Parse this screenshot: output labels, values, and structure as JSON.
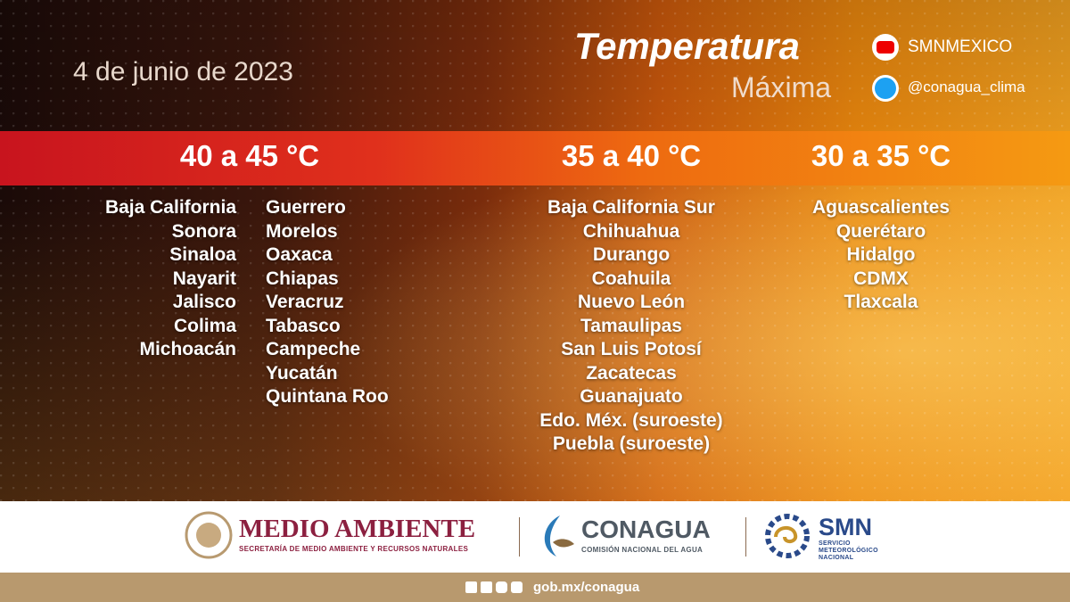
{
  "header": {
    "date": "4 de junio de 2023",
    "title": "Temperatura",
    "subtitle": "Máxima"
  },
  "social": {
    "youtube": "SMNMEXICO",
    "twitter": "@conagua_clima"
  },
  "columns": [
    {
      "range": "40 a 45 °C",
      "lists": [
        [
          "Baja California",
          "Sonora",
          "Sinaloa",
          "Nayarit",
          "Jalisco",
          "Colima",
          "Michoacán"
        ],
        [
          "Guerrero",
          "Morelos",
          "Oaxaca",
          "Chiapas",
          "Veracruz",
          "Tabasco",
          "Campeche",
          "Yucatán",
          "Quintana Roo"
        ]
      ]
    },
    {
      "range": "35 a 40 °C",
      "lists": [
        [
          "Baja California Sur",
          "Chihuahua",
          "Durango",
          "Coahuila",
          "Nuevo León",
          "Tamaulipas",
          "San Luis Potosí",
          "Zacatecas",
          "Guanajuato",
          "Edo. Méx. (suroeste)",
          "Puebla (suroeste)"
        ]
      ]
    },
    {
      "range": "30 a 35 °C",
      "lists": [
        [
          "Aguascalientes",
          "Querétaro",
          "Hidalgo",
          "CDMX",
          "Tlaxcala"
        ]
      ]
    }
  ],
  "footer": {
    "semarnat": {
      "name": "MEDIO AMBIENTE",
      "full": "SECRETARÍA DE MEDIO AMBIENTE Y RECURSOS NATURALES"
    },
    "conagua": {
      "name": "CONAGUA",
      "full": "COMISIÓN NACIONAL DEL AGUA"
    },
    "smn": {
      "name": "SMN",
      "full": [
        "SERVICIO",
        "METEOROLÓGICO",
        "NACIONAL"
      ]
    },
    "url": "gob.mx/conagua"
  }
}
